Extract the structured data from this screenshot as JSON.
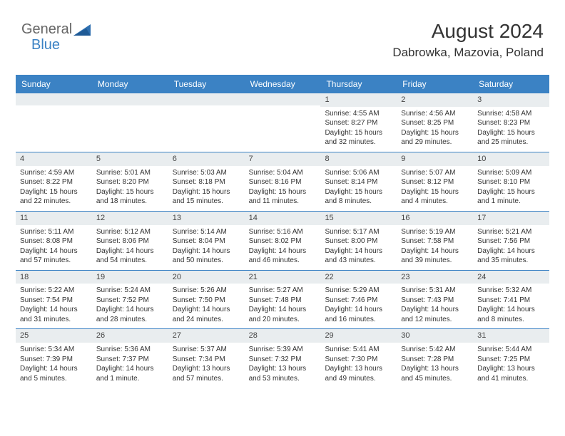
{
  "logo": {
    "text1": "General",
    "text2": "Blue"
  },
  "header": {
    "month": "August 2024",
    "location": "Dabrowka, Mazovia, Poland"
  },
  "colors": {
    "accent": "#3b82c4",
    "rowband": "#e9edef",
    "text": "#333333"
  },
  "daynames": [
    "Sunday",
    "Monday",
    "Tuesday",
    "Wednesday",
    "Thursday",
    "Friday",
    "Saturday"
  ],
  "weeks": [
    [
      {
        "n": "",
        "empty": true
      },
      {
        "n": "",
        "empty": true
      },
      {
        "n": "",
        "empty": true
      },
      {
        "n": "",
        "empty": true
      },
      {
        "n": "1",
        "sr": "Sunrise: 4:55 AM",
        "ss": "Sunset: 8:27 PM",
        "dl": "Daylight: 15 hours and 32 minutes."
      },
      {
        "n": "2",
        "sr": "Sunrise: 4:56 AM",
        "ss": "Sunset: 8:25 PM",
        "dl": "Daylight: 15 hours and 29 minutes."
      },
      {
        "n": "3",
        "sr": "Sunrise: 4:58 AM",
        "ss": "Sunset: 8:23 PM",
        "dl": "Daylight: 15 hours and 25 minutes."
      }
    ],
    [
      {
        "n": "4",
        "sr": "Sunrise: 4:59 AM",
        "ss": "Sunset: 8:22 PM",
        "dl": "Daylight: 15 hours and 22 minutes."
      },
      {
        "n": "5",
        "sr": "Sunrise: 5:01 AM",
        "ss": "Sunset: 8:20 PM",
        "dl": "Daylight: 15 hours and 18 minutes."
      },
      {
        "n": "6",
        "sr": "Sunrise: 5:03 AM",
        "ss": "Sunset: 8:18 PM",
        "dl": "Daylight: 15 hours and 15 minutes."
      },
      {
        "n": "7",
        "sr": "Sunrise: 5:04 AM",
        "ss": "Sunset: 8:16 PM",
        "dl": "Daylight: 15 hours and 11 minutes."
      },
      {
        "n": "8",
        "sr": "Sunrise: 5:06 AM",
        "ss": "Sunset: 8:14 PM",
        "dl": "Daylight: 15 hours and 8 minutes."
      },
      {
        "n": "9",
        "sr": "Sunrise: 5:07 AM",
        "ss": "Sunset: 8:12 PM",
        "dl": "Daylight: 15 hours and 4 minutes."
      },
      {
        "n": "10",
        "sr": "Sunrise: 5:09 AM",
        "ss": "Sunset: 8:10 PM",
        "dl": "Daylight: 15 hours and 1 minute."
      }
    ],
    [
      {
        "n": "11",
        "sr": "Sunrise: 5:11 AM",
        "ss": "Sunset: 8:08 PM",
        "dl": "Daylight: 14 hours and 57 minutes."
      },
      {
        "n": "12",
        "sr": "Sunrise: 5:12 AM",
        "ss": "Sunset: 8:06 PM",
        "dl": "Daylight: 14 hours and 54 minutes."
      },
      {
        "n": "13",
        "sr": "Sunrise: 5:14 AM",
        "ss": "Sunset: 8:04 PM",
        "dl": "Daylight: 14 hours and 50 minutes."
      },
      {
        "n": "14",
        "sr": "Sunrise: 5:16 AM",
        "ss": "Sunset: 8:02 PM",
        "dl": "Daylight: 14 hours and 46 minutes."
      },
      {
        "n": "15",
        "sr": "Sunrise: 5:17 AM",
        "ss": "Sunset: 8:00 PM",
        "dl": "Daylight: 14 hours and 43 minutes."
      },
      {
        "n": "16",
        "sr": "Sunrise: 5:19 AM",
        "ss": "Sunset: 7:58 PM",
        "dl": "Daylight: 14 hours and 39 minutes."
      },
      {
        "n": "17",
        "sr": "Sunrise: 5:21 AM",
        "ss": "Sunset: 7:56 PM",
        "dl": "Daylight: 14 hours and 35 minutes."
      }
    ],
    [
      {
        "n": "18",
        "sr": "Sunrise: 5:22 AM",
        "ss": "Sunset: 7:54 PM",
        "dl": "Daylight: 14 hours and 31 minutes."
      },
      {
        "n": "19",
        "sr": "Sunrise: 5:24 AM",
        "ss": "Sunset: 7:52 PM",
        "dl": "Daylight: 14 hours and 28 minutes."
      },
      {
        "n": "20",
        "sr": "Sunrise: 5:26 AM",
        "ss": "Sunset: 7:50 PM",
        "dl": "Daylight: 14 hours and 24 minutes."
      },
      {
        "n": "21",
        "sr": "Sunrise: 5:27 AM",
        "ss": "Sunset: 7:48 PM",
        "dl": "Daylight: 14 hours and 20 minutes."
      },
      {
        "n": "22",
        "sr": "Sunrise: 5:29 AM",
        "ss": "Sunset: 7:46 PM",
        "dl": "Daylight: 14 hours and 16 minutes."
      },
      {
        "n": "23",
        "sr": "Sunrise: 5:31 AM",
        "ss": "Sunset: 7:43 PM",
        "dl": "Daylight: 14 hours and 12 minutes."
      },
      {
        "n": "24",
        "sr": "Sunrise: 5:32 AM",
        "ss": "Sunset: 7:41 PM",
        "dl": "Daylight: 14 hours and 8 minutes."
      }
    ],
    [
      {
        "n": "25",
        "sr": "Sunrise: 5:34 AM",
        "ss": "Sunset: 7:39 PM",
        "dl": "Daylight: 14 hours and 5 minutes."
      },
      {
        "n": "26",
        "sr": "Sunrise: 5:36 AM",
        "ss": "Sunset: 7:37 PM",
        "dl": "Daylight: 14 hours and 1 minute."
      },
      {
        "n": "27",
        "sr": "Sunrise: 5:37 AM",
        "ss": "Sunset: 7:34 PM",
        "dl": "Daylight: 13 hours and 57 minutes."
      },
      {
        "n": "28",
        "sr": "Sunrise: 5:39 AM",
        "ss": "Sunset: 7:32 PM",
        "dl": "Daylight: 13 hours and 53 minutes."
      },
      {
        "n": "29",
        "sr": "Sunrise: 5:41 AM",
        "ss": "Sunset: 7:30 PM",
        "dl": "Daylight: 13 hours and 49 minutes."
      },
      {
        "n": "30",
        "sr": "Sunrise: 5:42 AM",
        "ss": "Sunset: 7:28 PM",
        "dl": "Daylight: 13 hours and 45 minutes."
      },
      {
        "n": "31",
        "sr": "Sunrise: 5:44 AM",
        "ss": "Sunset: 7:25 PM",
        "dl": "Daylight: 13 hours and 41 minutes."
      }
    ]
  ]
}
